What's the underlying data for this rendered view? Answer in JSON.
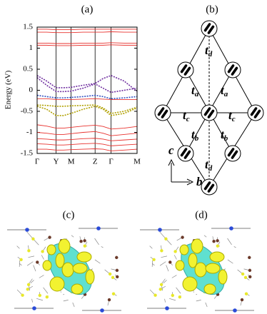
{
  "panels": [
    "(a)",
    "(b)",
    "(c)",
    "(d)"
  ],
  "chart_data": {
    "type": "line",
    "ylabel": "Energy (eV)",
    "x": [
      0,
      0.095,
      0.19,
      0.265,
      0.34,
      0.46,
      0.58,
      0.66,
      0.74,
      0.87,
      1
    ],
    "xlim": [
      0,
      1
    ],
    "xticks": [
      {
        "value": 0,
        "label": "Γ"
      },
      {
        "value": 0.19,
        "label": "Y"
      },
      {
        "value": 0.34,
        "label": "M"
      },
      {
        "value": 0.58,
        "label": "Z"
      },
      {
        "value": 0.74,
        "label": "Γ"
      },
      {
        "value": 1,
        "label": "M"
      }
    ],
    "ylim": [
      -1.5,
      1.5
    ],
    "yticks": [
      1.5,
      1,
      0.5,
      0,
      -0.5,
      -1,
      -1.5
    ],
    "series": [
      {
        "color": "#e8322e",
        "values": [
          1.45,
          1.45,
          1.44,
          1.44,
          1.44,
          1.45,
          1.45,
          1.45,
          1.45,
          1.45,
          1.45
        ]
      },
      {
        "color": "#e8322e",
        "values": [
          1.38,
          1.38,
          1.37,
          1.37,
          1.37,
          1.38,
          1.38,
          1.38,
          1.39,
          1.38,
          1.38
        ]
      },
      {
        "color": "#e8322e",
        "values": [
          1.12,
          1.12,
          1.11,
          1.11,
          1.11,
          1.12,
          1.12,
          1.12,
          1.13,
          1.12,
          1.12
        ]
      },
      {
        "color": "#e8322e",
        "values": [
          1.07,
          1.07,
          1.06,
          1.06,
          1.06,
          1.07,
          1.07,
          1.07,
          1.08,
          1.07,
          1.07
        ]
      },
      {
        "color": "#7030a0",
        "dashed": true,
        "values": [
          0.35,
          0.22,
          0.06,
          0.06,
          0.07,
          0.12,
          0.16,
          0.28,
          0.35,
          0.22,
          -0.03
        ]
      },
      {
        "color": "#7030a0",
        "dashed": true,
        "values": [
          0.3,
          0.12,
          -0.03,
          -0.03,
          -0.02,
          0.05,
          0.15,
          0.05,
          -0.05,
          0.0,
          0.05
        ]
      },
      {
        "color": "#3050c0",
        "dashed": true,
        "values": [
          -0.12,
          -0.15,
          -0.18,
          -0.18,
          -0.17,
          -0.15,
          -0.12,
          -0.15,
          -0.2,
          -0.18,
          -0.15
        ]
      },
      {
        "color": "#e8322e",
        "values": [
          -0.2,
          -0.2,
          -0.22,
          -0.22,
          -0.22,
          -0.21,
          -0.2,
          -0.21,
          -0.22,
          -0.22,
          -0.22
        ]
      },
      {
        "color": "#b0a000",
        "dashed": true,
        "values": [
          -0.35,
          -0.36,
          -0.38,
          -0.38,
          -0.37,
          -0.36,
          -0.35,
          -0.42,
          -0.55,
          -0.5,
          -0.4
        ]
      },
      {
        "color": "#b0a000",
        "dashed": true,
        "values": [
          -0.38,
          -0.45,
          -0.6,
          -0.6,
          -0.55,
          -0.45,
          -0.38,
          -0.45,
          -0.6,
          -0.55,
          -0.42
        ]
      },
      {
        "color": "#e8322e",
        "values": [
          -0.82,
          -0.85,
          -0.9,
          -0.9,
          -0.88,
          -0.85,
          -0.83,
          -0.86,
          -0.92,
          -0.9,
          -0.86
        ]
      },
      {
        "color": "#e8322e",
        "values": [
          -1.0,
          -1.02,
          -1.05,
          -1.05,
          -1.03,
          -1.0,
          -0.98,
          -1.02,
          -1.08,
          -1.05,
          -1.02
        ]
      },
      {
        "color": "#e8322e",
        "values": [
          -1.15,
          -1.16,
          -1.18,
          -1.18,
          -1.17,
          -1.15,
          -1.14,
          -1.16,
          -1.2,
          -1.18,
          -1.16
        ]
      },
      {
        "color": "#e8322e",
        "values": [
          -1.27,
          -1.28,
          -1.3,
          -1.3,
          -1.29,
          -1.27,
          -1.26,
          -1.28,
          -1.32,
          -1.3,
          -1.28
        ]
      },
      {
        "color": "#e8322e",
        "values": [
          -1.4,
          -1.4,
          -1.42,
          -1.42,
          -1.41,
          -1.4,
          -1.39,
          -1.4,
          -1.44,
          -1.42,
          -1.4
        ]
      }
    ]
  },
  "lattice": {
    "bonds": [
      {
        "main": "t",
        "sub": "d"
      },
      {
        "main": "t",
        "sub": "a"
      },
      {
        "main": "t",
        "sub": "a"
      },
      {
        "main": "t",
        "sub": "c"
      },
      {
        "main": "t",
        "sub": "c"
      },
      {
        "main": "t",
        "sub": "b"
      },
      {
        "main": "t",
        "sub": "b"
      },
      {
        "main": "t",
        "sub": "d"
      }
    ],
    "axes": [
      "c",
      "b"
    ]
  }
}
